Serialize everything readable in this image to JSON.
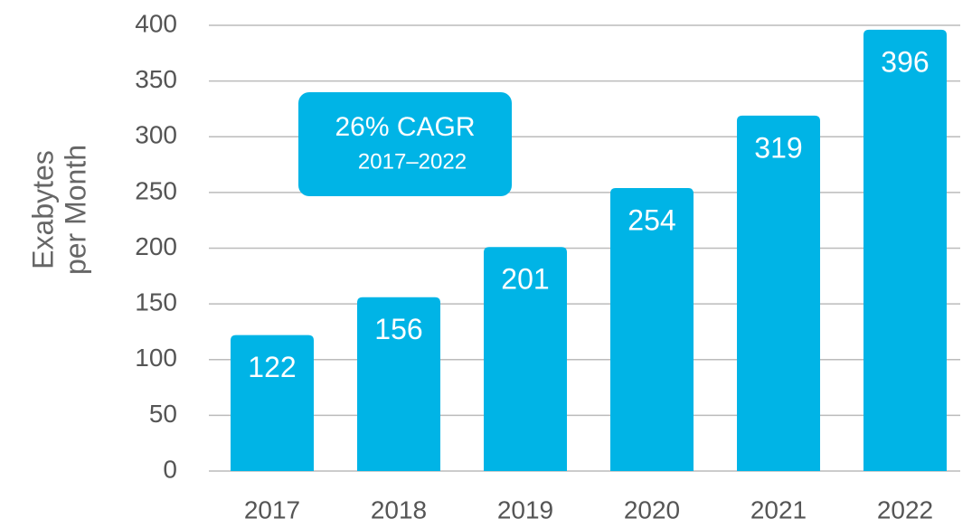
{
  "chart_data": {
    "type": "bar",
    "y_label_lines": [
      "Exabytes",
      "per Month"
    ],
    "annotation": {
      "title": "26% CAGR",
      "subtitle": "2017–2022"
    },
    "categories": [
      "2017",
      "2018",
      "2019",
      "2020",
      "2021",
      "2022"
    ],
    "values": [
      122,
      156,
      201,
      254,
      319,
      396
    ],
    "color": "#00b4e6",
    "ylim": [
      0,
      400
    ],
    "yticks": [
      0,
      50,
      100,
      150,
      200,
      250,
      300,
      350,
      400
    ],
    "grid": true
  }
}
